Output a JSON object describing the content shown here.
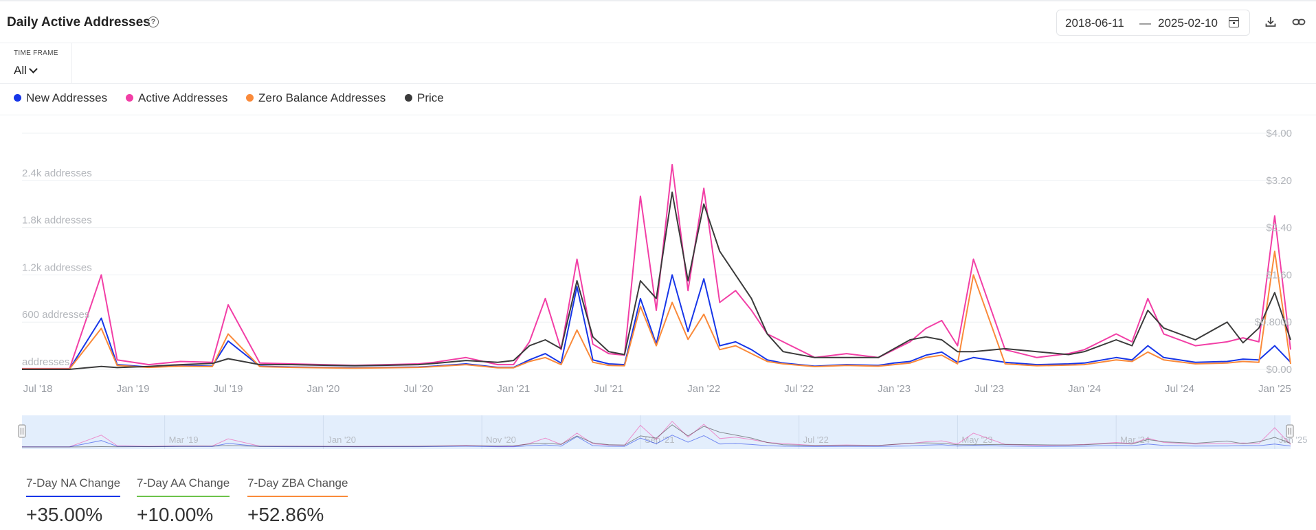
{
  "header": {
    "title": "Daily Active Addresses",
    "help_icon": "?",
    "date_from": "2018-06-11",
    "date_sep": "—",
    "date_to": "2025-02-10"
  },
  "timeframe": {
    "label": "TIME FRAME",
    "value": "All"
  },
  "legend": [
    {
      "label": "New Addresses",
      "color": "#1736e8"
    },
    {
      "label": "Active Addresses",
      "color": "#f23fa6"
    },
    {
      "label": "Zero Balance Addresses",
      "color": "#fa8a3a"
    },
    {
      "label": "Price",
      "color": "#3b3b3b"
    }
  ],
  "stats": [
    {
      "label": "7-Day NA Change",
      "value": "+35.00%",
      "color": "#1736e8"
    },
    {
      "label": "7-Day AA Change",
      "value": "+10.00%",
      "color": "#6cc24a"
    },
    {
      "label": "7-Day ZBA Change",
      "value": "+52.86%",
      "color": "#fa8a3a"
    }
  ],
  "chart_data": {
    "type": "line",
    "left_axis": {
      "ticks": [
        "addresses",
        "600 addresses",
        "1.2k addresses",
        "1.8k addresses",
        "2.4k addresses"
      ],
      "ylim": [
        0,
        3000
      ]
    },
    "right_axis": {
      "ticks": [
        "$0.00",
        "$0.8000",
        "$1.60",
        "$2.40",
        "$3.20",
        "$4.00"
      ],
      "ylim": [
        0,
        4.0
      ]
    },
    "x_ticks": [
      "Jul '18",
      "Jan '19",
      "Jul '19",
      "Jan '20",
      "Jul '20",
      "Jan '21",
      "Jul '21",
      "Jan '22",
      "Jul '22",
      "Jan '23",
      "Jul '23",
      "Jan '24",
      "Jul '24",
      "Jan '25"
    ],
    "navigator_labels": [
      "Mar '19",
      "Jan '20",
      "Nov '20",
      "Sep '21",
      "Jul '22",
      "May '23",
      "Mar '24",
      "Jan '25"
    ],
    "x_dates": [
      "2018-06",
      "2018-09",
      "2018-11",
      "2018-12",
      "2019-02",
      "2019-04",
      "2019-06",
      "2019-07",
      "2019-09",
      "2019-11",
      "2020-01",
      "2020-03",
      "2020-05",
      "2020-07",
      "2020-08",
      "2020-10",
      "2020-12",
      "2021-01",
      "2021-02",
      "2021-03",
      "2021-04",
      "2021-05",
      "2021-06",
      "2021-07",
      "2021-08",
      "2021-09",
      "2021-10",
      "2021-11",
      "2021-12",
      "2022-01",
      "2022-02",
      "2022-03",
      "2022-04",
      "2022-05",
      "2022-06",
      "2022-08",
      "2022-10",
      "2022-12",
      "2023-01",
      "2023-02",
      "2023-03",
      "2023-04",
      "2023-05",
      "2023-06",
      "2023-08",
      "2023-10",
      "2023-12",
      "2024-01",
      "2024-03",
      "2024-04",
      "2024-05",
      "2024-06",
      "2024-08",
      "2024-10",
      "2024-11",
      "2024-12",
      "2025-01",
      "2025-02"
    ],
    "series": [
      {
        "name": "Active Addresses",
        "axis": "left",
        "values": [
          10,
          10,
          1200,
          120,
          60,
          100,
          90,
          820,
          80,
          70,
          60,
          50,
          60,
          70,
          90,
          150,
          60,
          60,
          350,
          900,
          250,
          1400,
          320,
          200,
          180,
          2200,
          750,
          2600,
          1000,
          2300,
          850,
          1000,
          750,
          450,
          350,
          150,
          200,
          150,
          250,
          350,
          520,
          620,
          300,
          1400,
          250,
          150,
          200,
          250,
          450,
          350,
          900,
          450,
          300,
          350,
          400,
          350,
          1950,
          250
        ]
      },
      {
        "name": "New Addresses",
        "axis": "left",
        "values": [
          5,
          5,
          650,
          60,
          30,
          50,
          40,
          360,
          40,
          30,
          25,
          20,
          25,
          30,
          40,
          70,
          25,
          25,
          120,
          200,
          80,
          1050,
          120,
          70,
          60,
          900,
          320,
          1200,
          480,
          1150,
          300,
          350,
          250,
          120,
          80,
          40,
          60,
          50,
          80,
          100,
          180,
          220,
          90,
          150,
          90,
          60,
          70,
          80,
          150,
          120,
          300,
          150,
          90,
          100,
          130,
          120,
          300,
          90
        ]
      },
      {
        "name": "Zero Balance Addresses",
        "axis": "left",
        "values": [
          5,
          5,
          520,
          50,
          25,
          40,
          35,
          450,
          35,
          25,
          20,
          15,
          20,
          25,
          35,
          60,
          20,
          20,
          100,
          150,
          60,
          500,
          90,
          50,
          45,
          800,
          300,
          850,
          380,
          700,
          250,
          300,
          200,
          100,
          70,
          35,
          50,
          40,
          60,
          80,
          150,
          180,
          70,
          1200,
          70,
          45,
          55,
          60,
          120,
          100,
          220,
          120,
          70,
          80,
          100,
          90,
          1500,
          70
        ]
      },
      {
        "name": "Price",
        "axis": "right",
        "values": [
          0,
          0,
          0.05,
          0.03,
          0.05,
          0.08,
          0.1,
          0.18,
          0.08,
          0.08,
          0.07,
          0.06,
          0.07,
          0.08,
          0.1,
          0.15,
          0.12,
          0.15,
          0.4,
          0.5,
          0.35,
          1.5,
          0.55,
          0.3,
          0.25,
          1.5,
          1.2,
          3.0,
          1.5,
          2.8,
          2.0,
          1.6,
          1.2,
          0.6,
          0.3,
          0.2,
          0.2,
          0.2,
          0.35,
          0.5,
          0.55,
          0.5,
          0.3,
          0.3,
          0.35,
          0.3,
          0.25,
          0.3,
          0.5,
          0.4,
          1.0,
          0.7,
          0.5,
          0.8,
          0.45,
          0.7,
          1.3,
          0.5
        ]
      }
    ]
  }
}
